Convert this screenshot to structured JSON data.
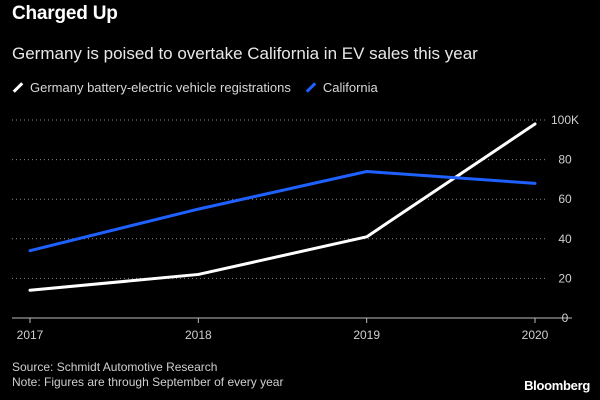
{
  "title": "Charged Up",
  "subtitle": "Germany is poised to overtake California in EV sales this year",
  "source": "Source: Schmidt Automotive Research",
  "note": "Note: Figures are through September of every year",
  "brand": "Bloomberg",
  "colors": {
    "germany": "#ffffff",
    "california": "#1f61ff",
    "grid": "#888888"
  },
  "chart_data": {
    "type": "line",
    "title": "Charged Up",
    "x": [
      "2017",
      "2018",
      "2019",
      "2020"
    ],
    "series": [
      {
        "name": "Germany battery-electric vehicle registrations",
        "values": [
          14,
          22,
          41,
          98
        ]
      },
      {
        "name": "California",
        "values": [
          34,
          55,
          74,
          68
        ]
      }
    ],
    "ylim": [
      0,
      100
    ],
    "yticks": [
      0,
      20,
      40,
      60,
      80,
      100
    ],
    "ytick_labels": [
      "0",
      "20",
      "40",
      "60",
      "80",
      "100K"
    ],
    "xlabel": "",
    "ylabel": "",
    "grid": true,
    "legend": "top-left"
  }
}
